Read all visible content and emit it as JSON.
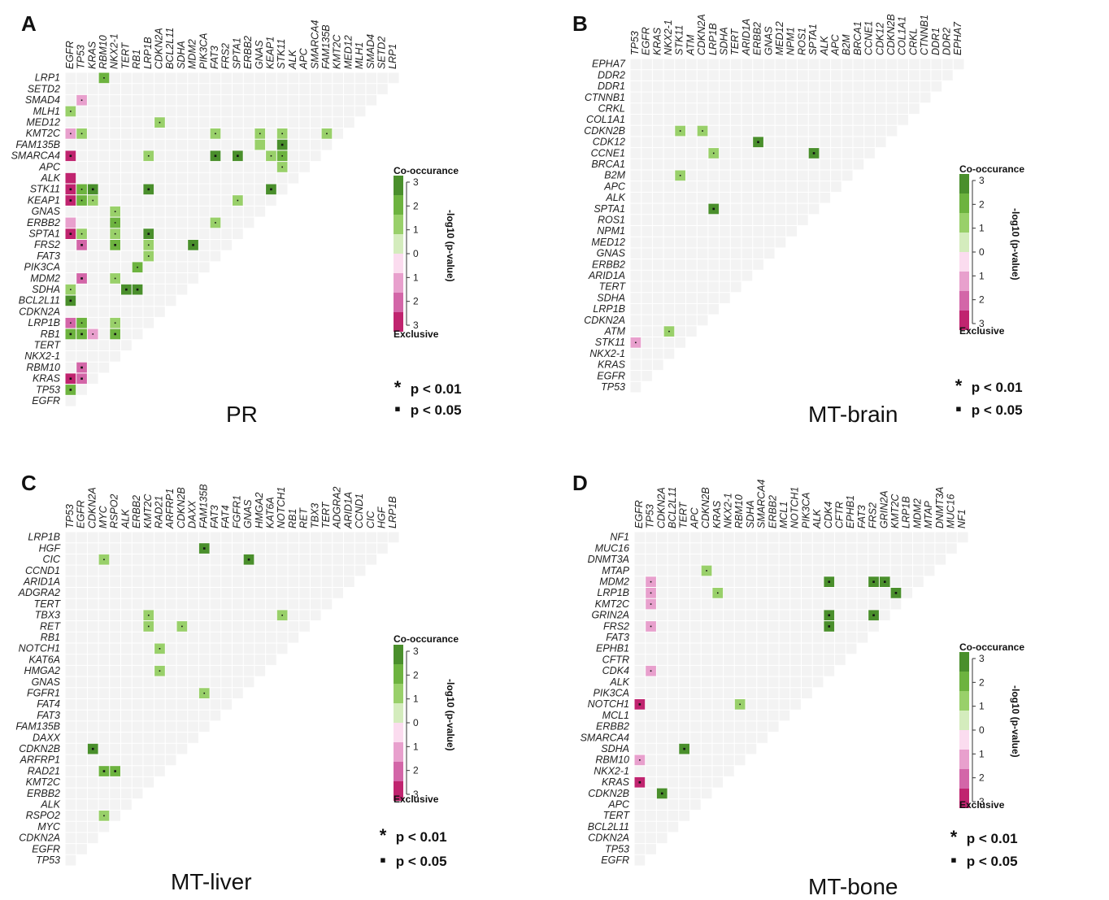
{
  "chart_data": [
    {
      "panel": "A",
      "title": "PR",
      "type": "heatmap",
      "col_labels": [
        "EGFR",
        "TP53",
        "KRAS",
        "RBM10",
        "NKX2-1",
        "TERT",
        "RB1",
        "LRP1B",
        "CDKN2A",
        "BCL2L11",
        "SDHA",
        "MDM2",
        "PIK3CA",
        "FAT3",
        "FRS2",
        "SPTA1",
        "ERBB2",
        "GNAS",
        "KEAP1",
        "STK11",
        "ALK",
        "APC",
        "SMARCA4",
        "FAM135B",
        "KMT2C",
        "MED12",
        "MLH1",
        "SMAD4",
        "SETD2",
        "LRP1"
      ],
      "row_labels": [
        "LRP1",
        "SETD2",
        "SMAD4",
        "MLH1",
        "MED12",
        "KMT2C",
        "FAM135B",
        "SMARCA4",
        "APC",
        "ALK",
        "STK11",
        "KEAP1",
        "GNAS",
        "ERBB2",
        "SPTA1",
        "FRS2",
        "FAT3",
        "PIK3CA",
        "MDM2",
        "SDHA",
        "BCL2L11",
        "CDKN2A",
        "LRP1B",
        "RB1",
        "TERT",
        "NKX2-1",
        "RBM10",
        "KRAS",
        "TP53",
        "EGFR"
      ],
      "cells": [
        {
          "row": "LRP1",
          "col": "RBM10",
          "value": 2,
          "sig": "p<0.05"
        },
        {
          "row": "SMAD4",
          "col": "TP53",
          "value": -1,
          "sig": "p<0.05"
        },
        {
          "row": "MLH1",
          "col": "EGFR",
          "value": 1,
          "sig": "p<0.05"
        },
        {
          "row": "MED12",
          "col": "CDKN2A",
          "value": 1,
          "sig": "p<0.05"
        },
        {
          "row": "KMT2C",
          "col": "EGFR",
          "value": -1,
          "sig": "p<0.05"
        },
        {
          "row": "KMT2C",
          "col": "TP53",
          "value": 1,
          "sig": "p<0.05"
        },
        {
          "row": "KMT2C",
          "col": "FAT3",
          "value": 1,
          "sig": "p<0.05"
        },
        {
          "row": "KMT2C",
          "col": "GNAS",
          "value": 1,
          "sig": "p<0.05"
        },
        {
          "row": "KMT2C",
          "col": "STK11",
          "value": 1,
          "sig": "p<0.05"
        },
        {
          "row": "KMT2C",
          "col": "FAM135B",
          "value": 1,
          "sig": "p<0.05"
        },
        {
          "row": "FAM135B",
          "col": "GNAS",
          "value": 1,
          "sig": ""
        },
        {
          "row": "FAM135B",
          "col": "STK11",
          "value": 3,
          "sig": "p<0.01"
        },
        {
          "row": "SMARCA4",
          "col": "EGFR",
          "value": -3,
          "sig": "p<0.01"
        },
        {
          "row": "SMARCA4",
          "col": "LRP1B",
          "value": 1,
          "sig": "p<0.05"
        },
        {
          "row": "SMARCA4",
          "col": "FAT3",
          "value": 3,
          "sig": "p<0.01"
        },
        {
          "row": "SMARCA4",
          "col": "SPTA1",
          "value": 3,
          "sig": "p<0.01"
        },
        {
          "row": "SMARCA4",
          "col": "KEAP1",
          "value": 1,
          "sig": "p<0.05"
        },
        {
          "row": "SMARCA4",
          "col": "STK11",
          "value": 2,
          "sig": "p<0.05"
        },
        {
          "row": "APC",
          "col": "STK11",
          "value": 1,
          "sig": "p<0.05"
        },
        {
          "row": "ALK",
          "col": "EGFR",
          "value": -3,
          "sig": ""
        },
        {
          "row": "STK11",
          "col": "EGFR",
          "value": -3,
          "sig": "p<0.01"
        },
        {
          "row": "STK11",
          "col": "TP53",
          "value": 2,
          "sig": "p<0.05"
        },
        {
          "row": "STK11",
          "col": "KRAS",
          "value": 3,
          "sig": "p<0.01"
        },
        {
          "row": "STK11",
          "col": "LRP1B",
          "value": 3,
          "sig": "p<0.01"
        },
        {
          "row": "STK11",
          "col": "KEAP1",
          "value": 3,
          "sig": "p<0.01"
        },
        {
          "row": "KEAP1",
          "col": "EGFR",
          "value": -3,
          "sig": "p<0.01"
        },
        {
          "row": "KEAP1",
          "col": "TP53",
          "value": 2,
          "sig": "p<0.05"
        },
        {
          "row": "KEAP1",
          "col": "KRAS",
          "value": 1,
          "sig": "p<0.05"
        },
        {
          "row": "KEAP1",
          "col": "SPTA1",
          "value": 1,
          "sig": "p<0.05"
        },
        {
          "row": "GNAS",
          "col": "NKX2-1",
          "value": 1,
          "sig": "p<0.05"
        },
        {
          "row": "ERBB2",
          "col": "EGFR",
          "value": -1,
          "sig": ""
        },
        {
          "row": "ERBB2",
          "col": "NKX2-1",
          "value": 2,
          "sig": "p<0.05"
        },
        {
          "row": "ERBB2",
          "col": "FAT3",
          "value": 1,
          "sig": "p<0.05"
        },
        {
          "row": "SPTA1",
          "col": "EGFR",
          "value": -3,
          "sig": "p<0.01"
        },
        {
          "row": "SPTA1",
          "col": "TP53",
          "value": 1,
          "sig": "p<0.05"
        },
        {
          "row": "SPTA1",
          "col": "NKX2-1",
          "value": 1,
          "sig": "p<0.05"
        },
        {
          "row": "SPTA1",
          "col": "LRP1B",
          "value": 3,
          "sig": "p<0.01"
        },
        {
          "row": "FRS2",
          "col": "TP53",
          "value": -2,
          "sig": "p<0.01"
        },
        {
          "row": "FRS2",
          "col": "NKX2-1",
          "value": 2,
          "sig": "p<0.01"
        },
        {
          "row": "FRS2",
          "col": "LRP1B",
          "value": 1,
          "sig": "p<0.05"
        },
        {
          "row": "FRS2",
          "col": "MDM2",
          "value": 3,
          "sig": "p<0.01"
        },
        {
          "row": "FAT3",
          "col": "LRP1B",
          "value": 1,
          "sig": "p<0.05"
        },
        {
          "row": "PIK3CA",
          "col": "RB1",
          "value": 2,
          "sig": "p<0.05"
        },
        {
          "row": "MDM2",
          "col": "TP53",
          "value": -2,
          "sig": "p<0.01"
        },
        {
          "row": "MDM2",
          "col": "NKX2-1",
          "value": 1,
          "sig": "p<0.05"
        },
        {
          "row": "SDHA",
          "col": "EGFR",
          "value": 1,
          "sig": "p<0.05"
        },
        {
          "row": "SDHA",
          "col": "TERT",
          "value": 3,
          "sig": "p<0.01"
        },
        {
          "row": "SDHA",
          "col": "RB1",
          "value": 3,
          "sig": "p<0.01"
        },
        {
          "row": "BCL2L11",
          "col": "EGFR",
          "value": 3,
          "sig": "p<0.01"
        },
        {
          "row": "LRP1B",
          "col": "EGFR",
          "value": -2,
          "sig": "p<0.05"
        },
        {
          "row": "LRP1B",
          "col": "TP53",
          "value": 2,
          "sig": "p<0.05"
        },
        {
          "row": "LRP1B",
          "col": "NKX2-1",
          "value": 1,
          "sig": "p<0.05"
        },
        {
          "row": "RB1",
          "col": "EGFR",
          "value": 2,
          "sig": "p<0.01"
        },
        {
          "row": "RB1",
          "col": "TP53",
          "value": 2,
          "sig": "p<0.01"
        },
        {
          "row": "RB1",
          "col": "KRAS",
          "value": -1,
          "sig": "p<0.05"
        },
        {
          "row": "RB1",
          "col": "NKX2-1",
          "value": 2,
          "sig": "p<0.01"
        },
        {
          "row": "RBM10",
          "col": "TP53",
          "value": -2,
          "sig": "p<0.01"
        },
        {
          "row": "KRAS",
          "col": "EGFR",
          "value": -3,
          "sig": "p<0.01"
        },
        {
          "row": "KRAS",
          "col": "TP53",
          "value": -2,
          "sig": "p<0.01"
        },
        {
          "row": "TP53",
          "col": "EGFR",
          "value": 2,
          "sig": "p<0.01"
        }
      ]
    },
    {
      "panel": "B",
      "title": "MT-brain",
      "type": "heatmap",
      "col_labels": [
        "TP53",
        "EGFR",
        "KRAS",
        "NKX2-1",
        "STK11",
        "ATM",
        "CDKN2A",
        "LRP1B",
        "SDHA",
        "TERT",
        "ARID1A",
        "ERBB2",
        "GNAS",
        "MED12",
        "NPM1",
        "ROS1",
        "SPTA1",
        "ALK",
        "APC",
        "B2M",
        "BRCA1",
        "CCNE1",
        "CDK12",
        "CDKN2B",
        "COL1A1",
        "CRKL",
        "CTNNB1",
        "DDR1",
        "DDR2",
        "EPHA7"
      ],
      "row_labels": [
        "EPHA7",
        "DDR2",
        "DDR1",
        "CTNNB1",
        "CRKL",
        "COL1A1",
        "CDKN2B",
        "CDK12",
        "CCNE1",
        "BRCA1",
        "B2M",
        "APC",
        "ALK",
        "SPTA1",
        "ROS1",
        "NPM1",
        "MED12",
        "GNAS",
        "ERBB2",
        "ARID1A",
        "TERT",
        "SDHA",
        "LRP1B",
        "CDKN2A",
        "ATM",
        "STK11",
        "NKX2-1",
        "KRAS",
        "EGFR",
        "TP53"
      ],
      "cells": [
        {
          "row": "CDKN2B",
          "col": "STK11",
          "value": 1,
          "sig": "p<0.05"
        },
        {
          "row": "CDKN2B",
          "col": "CDKN2A",
          "value": 1,
          "sig": "p<0.05"
        },
        {
          "row": "CDK12",
          "col": "ERBB2",
          "value": 3,
          "sig": "p<0.01"
        },
        {
          "row": "CCNE1",
          "col": "LRP1B",
          "value": 1,
          "sig": "p<0.05"
        },
        {
          "row": "CCNE1",
          "col": "SPTA1",
          "value": 3,
          "sig": "p<0.01"
        },
        {
          "row": "B2M",
          "col": "STK11",
          "value": 1,
          "sig": "p<0.05"
        },
        {
          "row": "SPTA1",
          "col": "LRP1B",
          "value": 3,
          "sig": "p<0.01"
        },
        {
          "row": "ATM",
          "col": "NKX2-1",
          "value": 1,
          "sig": "p<0.05"
        },
        {
          "row": "STK11",
          "col": "TP53",
          "value": -1,
          "sig": "p<0.05"
        }
      ]
    },
    {
      "panel": "C",
      "title": "MT-liver",
      "type": "heatmap",
      "col_labels": [
        "TP53",
        "EGFR",
        "CDKN2A",
        "MYC",
        "RSPO2",
        "ALK",
        "ERBB2",
        "KMT2C",
        "RAD21",
        "ARFRP1",
        "CDKN2B",
        "DAXX",
        "FAM135B",
        "FAT3",
        "FAT4",
        "FGFR1",
        "GNAS",
        "HMGA2",
        "KAT6A",
        "NOTCH1",
        "RB1",
        "RET",
        "TBX3",
        "TERT",
        "ADGRA2",
        "ARID1A",
        "CCND1",
        "CIC",
        "HGF",
        "LRP1B"
      ],
      "row_labels": [
        "LRP1B",
        "HGF",
        "CIC",
        "CCND1",
        "ARID1A",
        "ADGRA2",
        "TERT",
        "TBX3",
        "RET",
        "RB1",
        "NOTCH1",
        "KAT6A",
        "HMGA2",
        "GNAS",
        "FGFR1",
        "FAT4",
        "FAT3",
        "FAM135B",
        "DAXX",
        "CDKN2B",
        "ARFRP1",
        "RAD21",
        "KMT2C",
        "ERBB2",
        "ALK",
        "RSPO2",
        "MYC",
        "CDKN2A",
        "EGFR",
        "TP53"
      ],
      "cells": [
        {
          "row": "HGF",
          "col": "FAM135B",
          "value": 3,
          "sig": "p<0.01"
        },
        {
          "row": "CIC",
          "col": "MYC",
          "value": 1,
          "sig": "p<0.05"
        },
        {
          "row": "CIC",
          "col": "GNAS",
          "value": 3,
          "sig": "p<0.01"
        },
        {
          "row": "TBX3",
          "col": "KMT2C",
          "value": 1,
          "sig": "p<0.05"
        },
        {
          "row": "TBX3",
          "col": "NOTCH1",
          "value": 1,
          "sig": "p<0.05"
        },
        {
          "row": "RET",
          "col": "KMT2C",
          "value": 1,
          "sig": "p<0.05"
        },
        {
          "row": "RET",
          "col": "CDKN2B",
          "value": 1,
          "sig": "p<0.05"
        },
        {
          "row": "NOTCH1",
          "col": "RAD21",
          "value": 1,
          "sig": "p<0.05"
        },
        {
          "row": "HMGA2",
          "col": "RAD21",
          "value": 1,
          "sig": "p<0.05"
        },
        {
          "row": "FGFR1",
          "col": "FAM135B",
          "value": 1,
          "sig": "p<0.05"
        },
        {
          "row": "CDKN2B",
          "col": "CDKN2A",
          "value": 3,
          "sig": "p<0.01"
        },
        {
          "row": "RAD21",
          "col": "MYC",
          "value": 2,
          "sig": "p<0.01"
        },
        {
          "row": "RAD21",
          "col": "RSPO2",
          "value": 2,
          "sig": "p<0.01"
        },
        {
          "row": "RSPO2",
          "col": "MYC",
          "value": 1,
          "sig": "p<0.05"
        }
      ]
    },
    {
      "panel": "D",
      "title": "MT-bone",
      "type": "heatmap",
      "col_labels": [
        "EGFR",
        "TP53",
        "CDKN2A",
        "BCL2L11",
        "TERT",
        "APC",
        "CDKN2B",
        "KRAS",
        "NKX2-1",
        "RBM10",
        "SDHA",
        "SMARCA4",
        "ERBB2",
        "MCL1",
        "NOTCH1",
        "PIK3CA",
        "ALK",
        "CDK4",
        "CFTR",
        "EPHB1",
        "FAT3",
        "FRS2",
        "GRIN2A",
        "KMT2C",
        "LRP1B",
        "MDM2",
        "MTAP",
        "DNMT3A",
        "MUC16",
        "NF1"
      ],
      "row_labels": [
        "NF1",
        "MUC16",
        "DNMT3A",
        "MTAP",
        "MDM2",
        "LRP1B",
        "KMT2C",
        "GRIN2A",
        "FRS2",
        "FAT3",
        "EPHB1",
        "CFTR",
        "CDK4",
        "ALK",
        "PIK3CA",
        "NOTCH1",
        "MCL1",
        "ERBB2",
        "SMARCA4",
        "SDHA",
        "RBM10",
        "NKX2-1",
        "KRAS",
        "CDKN2B",
        "APC",
        "TERT",
        "BCL2L11",
        "CDKN2A",
        "TP53",
        "EGFR"
      ],
      "cells": [
        {
          "row": "MTAP",
          "col": "CDKN2B",
          "value": 1,
          "sig": "p<0.05"
        },
        {
          "row": "MDM2",
          "col": "TP53",
          "value": -1,
          "sig": "p<0.05"
        },
        {
          "row": "MDM2",
          "col": "CDK4",
          "value": 3,
          "sig": "p<0.01"
        },
        {
          "row": "MDM2",
          "col": "FRS2",
          "value": 3,
          "sig": "p<0.01"
        },
        {
          "row": "MDM2",
          "col": "GRIN2A",
          "value": 3,
          "sig": "p<0.01"
        },
        {
          "row": "LRP1B",
          "col": "TP53",
          "value": -1,
          "sig": "p<0.05"
        },
        {
          "row": "LRP1B",
          "col": "KRAS",
          "value": 1,
          "sig": "p<0.05"
        },
        {
          "row": "LRP1B",
          "col": "KMT2C",
          "value": 3,
          "sig": "p<0.01"
        },
        {
          "row": "KMT2C",
          "col": "TP53",
          "value": -1,
          "sig": "p<0.05"
        },
        {
          "row": "GRIN2A",
          "col": "CDK4",
          "value": 3,
          "sig": "p<0.01"
        },
        {
          "row": "GRIN2A",
          "col": "FRS2",
          "value": 3,
          "sig": "p<0.01"
        },
        {
          "row": "FRS2",
          "col": "TP53",
          "value": -1,
          "sig": "p<0.05"
        },
        {
          "row": "FRS2",
          "col": "CDK4",
          "value": 3,
          "sig": "p<0.01"
        },
        {
          "row": "CDK4",
          "col": "TP53",
          "value": -1,
          "sig": "p<0.05"
        },
        {
          "row": "NOTCH1",
          "col": "EGFR",
          "value": -3,
          "sig": "p<0.01"
        },
        {
          "row": "NOTCH1",
          "col": "RBM10",
          "value": 1,
          "sig": "p<0.05"
        },
        {
          "row": "SDHA",
          "col": "TERT",
          "value": 3,
          "sig": "p<0.01"
        },
        {
          "row": "RBM10",
          "col": "EGFR",
          "value": -1,
          "sig": "p<0.05"
        },
        {
          "row": "KRAS",
          "col": "EGFR",
          "value": -3,
          "sig": "p<0.01"
        },
        {
          "row": "CDKN2B",
          "col": "CDKN2A",
          "value": 3,
          "sig": "p<0.01"
        }
      ]
    }
  ],
  "panel_labels": {
    "a": "A",
    "b": "B",
    "c": "C",
    "d": "D"
  },
  "panel_titles": {
    "a": "PR",
    "b": "MT-brain",
    "c": "MT-liver",
    "d": "MT-bone"
  },
  "legend": {
    "title_top": "Co-occurance",
    "title_bottom": "Exclusive",
    "axis_label": "-log10 (p-value)",
    "ticks": [
      "3",
      "2",
      "1",
      "0",
      "1",
      "2",
      "3"
    ],
    "colors": [
      "#4a8f2c",
      "#6db33f",
      "#99d06a",
      "#d4ecbd",
      "#fbdcef",
      "#e8a0cd",
      "#d366a8",
      "#c0246f"
    ]
  },
  "significance": {
    "star_symbol": "*",
    "star_label": "p < 0.01",
    "dot_symbol": "▪",
    "dot_label": "p < 0.05"
  }
}
